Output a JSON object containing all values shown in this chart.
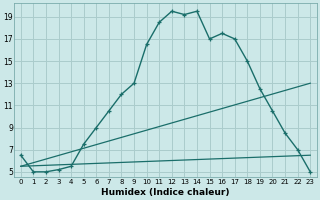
{
  "xlabel": "Humidex (Indice chaleur)",
  "bg_color": "#cce8e8",
  "grid_color": "#aacccc",
  "line_color": "#1a6e6a",
  "xlim": [
    -0.5,
    23.5
  ],
  "ylim": [
    4.5,
    20.2
  ],
  "xticks": [
    0,
    1,
    2,
    3,
    4,
    5,
    6,
    7,
    8,
    9,
    10,
    11,
    12,
    13,
    14,
    15,
    16,
    17,
    18,
    19,
    20,
    21,
    22,
    23
  ],
  "yticks": [
    5,
    7,
    9,
    11,
    13,
    15,
    17,
    19
  ],
  "line1_x": [
    0,
    1,
    2,
    3,
    4,
    5,
    6,
    7,
    8,
    9,
    10,
    11,
    12,
    13,
    14,
    15,
    16,
    17,
    18,
    19,
    20,
    21,
    22,
    23
  ],
  "line1_y": [
    6.5,
    5.0,
    5.0,
    5.2,
    5.5,
    7.5,
    9.0,
    10.5,
    12.0,
    13.0,
    16.5,
    18.5,
    19.5,
    19.2,
    19.5,
    17.0,
    17.5,
    17.0,
    15.0,
    12.5,
    10.5,
    8.5,
    7.0,
    5.0
  ],
  "line2_x": [
    0,
    23
  ],
  "line2_y": [
    5.5,
    13.0
  ],
  "line3_x": [
    0,
    23
  ],
  "line3_y": [
    5.5,
    6.5
  ]
}
